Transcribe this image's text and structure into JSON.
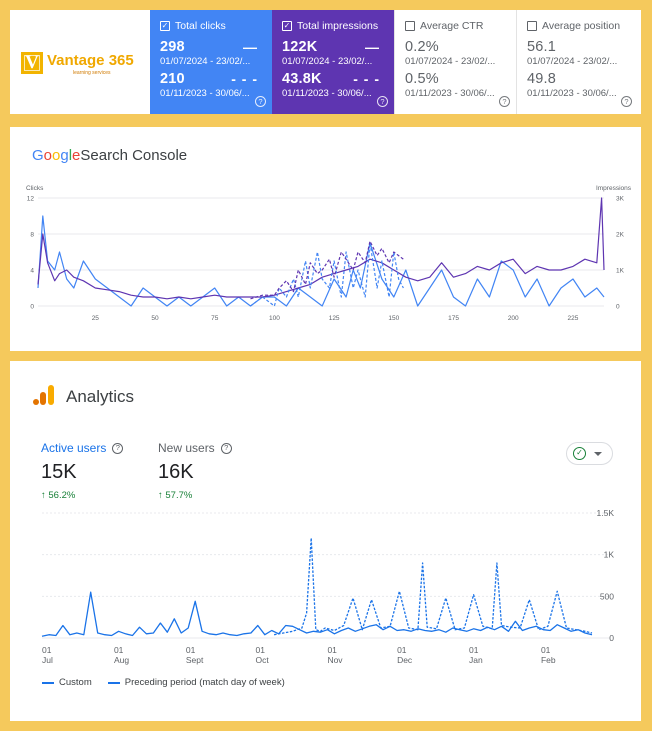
{
  "logo": {
    "letter": "V",
    "name": "Vantage 365",
    "tagline": "learning services"
  },
  "metrics": [
    {
      "label": "Total clicks",
      "checked": true,
      "style": "blue",
      "current": {
        "value": "298",
        "range": "01/07/2024 - 23/02/..."
      },
      "previous": {
        "value": "210",
        "range": "01/11/2023 - 30/06/..."
      }
    },
    {
      "label": "Total impressions",
      "checked": true,
      "style": "purple",
      "current": {
        "value": "122K",
        "range": "01/07/2024 - 23/02/..."
      },
      "previous": {
        "value": "43.8K",
        "range": "01/11/2023 - 30/06/..."
      }
    },
    {
      "label": "Average CTR",
      "checked": false,
      "style": "plain",
      "current": {
        "value": "0.2%",
        "range": "01/07/2024 - 23/02/..."
      },
      "previous": {
        "value": "0.5%",
        "range": "01/11/2023 - 30/06/..."
      }
    },
    {
      "label": "Average position",
      "checked": false,
      "style": "plain",
      "current": {
        "value": "56.1",
        "range": "01/07/2024 - 23/02/..."
      },
      "previous": {
        "value": "49.8",
        "range": "01/11/2023 - 30/06/..."
      }
    }
  ],
  "colors": {
    "clicks": "#4285f4",
    "impressions": "#5e35b1",
    "ga_line": "#1a73e8",
    "positive": "#188038"
  },
  "search_console": {
    "title_google": "Google",
    "title_rest": "Search Console",
    "chart_data": {
      "type": "line",
      "left_axis_label": "Clicks",
      "right_axis_label": "Impressions",
      "left_ticks": [
        "0",
        "4",
        "8",
        "12"
      ],
      "right_ticks": [
        "0",
        "1K",
        "2K",
        "3K"
      ],
      "ylim_left": [
        0,
        12
      ],
      "ylim_right": [
        0,
        3000
      ],
      "x_ticks": [
        25,
        50,
        75,
        100,
        125,
        150,
        175,
        200,
        225
      ],
      "xlim": [
        1,
        238
      ],
      "series": [
        {
          "axis": "left",
          "style": "solid",
          "color": "#4285f4",
          "x": [
            1,
            3,
            5,
            8,
            10,
            13,
            16,
            20,
            25,
            30,
            35,
            40,
            45,
            50,
            55,
            60,
            65,
            70,
            75,
            80,
            85,
            90,
            95,
            100,
            105,
            110,
            115,
            120,
            125,
            130,
            133,
            136,
            140,
            145,
            150,
            155,
            160,
            165,
            170,
            175,
            180,
            185,
            190,
            195,
            200,
            205,
            210,
            215,
            220,
            225,
            230,
            235,
            238
          ],
          "y": [
            2,
            10,
            5,
            4,
            6,
            3,
            2,
            5,
            3,
            2,
            1,
            0,
            2,
            1,
            0,
            1,
            0,
            1,
            2,
            0,
            1,
            0,
            1,
            1,
            0,
            2,
            1,
            0,
            3,
            1,
            4,
            2,
            7,
            3,
            1,
            4,
            0,
            2,
            4,
            1,
            0,
            3,
            1,
            5,
            4,
            1,
            3,
            0,
            2,
            3,
            1,
            2,
            1
          ]
        },
        {
          "axis": "right",
          "style": "solid",
          "color": "#5e35b1",
          "x": [
            1,
            3,
            5,
            8,
            10,
            13,
            16,
            20,
            25,
            30,
            35,
            40,
            45,
            50,
            55,
            60,
            65,
            70,
            75,
            80,
            85,
            90,
            95,
            100,
            105,
            110,
            115,
            120,
            125,
            130,
            135,
            140,
            145,
            150,
            155,
            160,
            165,
            170,
            175,
            180,
            185,
            190,
            195,
            200,
            205,
            210,
            215,
            220,
            225,
            230,
            235,
            237,
            238
          ],
          "y": [
            600,
            2000,
            1200,
            700,
            900,
            1000,
            800,
            700,
            500,
            450,
            400,
            300,
            250,
            250,
            200,
            250,
            200,
            250,
            300,
            250,
            250,
            250,
            250,
            300,
            400,
            500,
            600,
            800,
            900,
            1000,
            1100,
            1300,
            1200,
            1000,
            800,
            700,
            800,
            1200,
            800,
            900,
            1100,
            1000,
            1200,
            1300,
            900,
            1100,
            1000,
            1000,
            1100,
            1300,
            1200,
            3000,
            1000
          ]
        },
        {
          "axis": "left",
          "style": "dashed",
          "color": "#4285f4",
          "x": [
            90,
            95,
            100,
            102,
            105,
            108,
            110,
            113,
            115,
            118,
            120,
            123,
            125,
            128,
            130,
            133,
            135,
            138,
            140,
            143,
            145,
            148,
            150,
            152,
            154
          ],
          "y": [
            0,
            1,
            0,
            2,
            1,
            3,
            1,
            5,
            2,
            6,
            3,
            2,
            5,
            1,
            6,
            2,
            4,
            1,
            7,
            2,
            5,
            1,
            6,
            3,
            2
          ]
        },
        {
          "axis": "right",
          "style": "dashed",
          "color": "#5e35b1",
          "x": [
            90,
            95,
            100,
            102,
            105,
            108,
            110,
            113,
            115,
            118,
            120,
            123,
            125,
            128,
            130,
            133,
            135,
            138,
            140,
            143,
            145,
            148,
            150,
            152,
            154
          ],
          "y": [
            200,
            300,
            300,
            500,
            700,
            400,
            1000,
            600,
            1200,
            900,
            1000,
            1300,
            800,
            1500,
            1300,
            1000,
            1500,
            1200,
            1800,
            1400,
            1600,
            1200,
            1500,
            1400,
            1300
          ]
        }
      ]
    }
  },
  "analytics": {
    "title": "Analytics",
    "metrics": [
      {
        "label": "Active users",
        "value": "15K",
        "change": "↑ 56.2%"
      },
      {
        "label": "New users",
        "value": "16K",
        "change": "↑ 57.7%"
      }
    ],
    "chart_data": {
      "type": "line",
      "y_ticks": [
        "0",
        "500",
        "1K",
        "1.5K"
      ],
      "ylim": [
        0,
        1500
      ],
      "x_ticks": [
        {
          "day": "01",
          "month": "Jul",
          "at": 0
        },
        {
          "day": "01",
          "month": "Aug",
          "at": 31
        },
        {
          "day": "01",
          "month": "Sept",
          "at": 62
        },
        {
          "day": "01",
          "month": "Oct",
          "at": 92
        },
        {
          "day": "01",
          "month": "Nov",
          "at": 123
        },
        {
          "day": "01",
          "month": "Dec",
          "at": 153
        },
        {
          "day": "01",
          "month": "Jan",
          "at": 184
        },
        {
          "day": "01",
          "month": "Feb",
          "at": 215
        }
      ],
      "xlim": [
        0,
        237
      ],
      "series": [
        {
          "name": "Custom",
          "style": "solid",
          "color": "#1a73e8",
          "x": [
            0,
            3,
            6,
            9,
            12,
            15,
            18,
            21,
            24,
            27,
            30,
            33,
            36,
            39,
            42,
            45,
            48,
            51,
            54,
            57,
            60,
            63,
            66,
            69,
            72,
            75,
            78,
            81,
            84,
            87,
            90,
            93,
            96,
            99,
            102,
            105,
            108,
            111,
            114,
            117,
            120,
            123,
            126,
            129,
            132,
            135,
            138,
            141,
            144,
            147,
            150,
            153,
            156,
            159,
            162,
            165,
            168,
            171,
            174,
            177,
            180,
            183,
            186,
            189,
            192,
            195,
            198,
            201,
            204,
            207,
            210,
            213,
            216,
            219,
            222,
            225,
            228,
            231,
            234,
            237
          ],
          "y": [
            20,
            40,
            30,
            150,
            40,
            60,
            40,
            550,
            60,
            40,
            30,
            80,
            50,
            30,
            130,
            50,
            60,
            180,
            70,
            230,
            60,
            120,
            440,
            80,
            50,
            40,
            60,
            40,
            30,
            50,
            60,
            150,
            40,
            90,
            50,
            150,
            140,
            100,
            60,
            80,
            70,
            100,
            50,
            90,
            120,
            80,
            110,
            140,
            160,
            100,
            140,
            90,
            100,
            80,
            110,
            90,
            80,
            100,
            70,
            120,
            100,
            80,
            110,
            90,
            130,
            100,
            140,
            80,
            200,
            90,
            120,
            140,
            100,
            90,
            160,
            120,
            80,
            100,
            60,
            40
          ]
        },
        {
          "name": "Preceding period (match day of week)",
          "style": "dashed",
          "color": "#1a73e8",
          "x": [
            100,
            104,
            108,
            112,
            114,
            116,
            118,
            120,
            122,
            126,
            130,
            134,
            138,
            142,
            146,
            150,
            154,
            158,
            162,
            164,
            166,
            170,
            174,
            178,
            182,
            186,
            190,
            194,
            196,
            198,
            202,
            206,
            210,
            214,
            218,
            222,
            226,
            230,
            234,
            237
          ],
          "y": [
            40,
            60,
            80,
            120,
            300,
            1200,
            100,
            80,
            120,
            90,
            150,
            480,
            100,
            460,
            120,
            140,
            560,
            120,
            100,
            900,
            130,
            110,
            480,
            100,
            120,
            520,
            140,
            110,
            900,
            150,
            130,
            120,
            460,
            100,
            140,
            560,
            120,
            100,
            80,
            60
          ]
        }
      ]
    },
    "legend": [
      {
        "label": "Custom",
        "style": "solid"
      },
      {
        "label": "Preceding period (match day of week)",
        "style": "dashed"
      }
    ]
  }
}
